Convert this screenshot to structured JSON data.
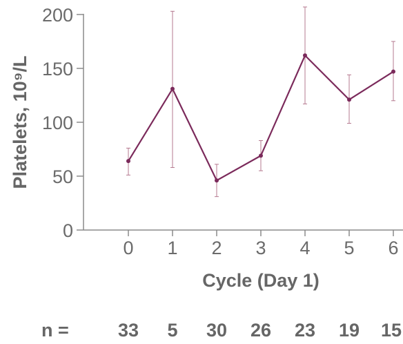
{
  "colors": {
    "series": "#7b2a5b",
    "error_bar": "#b5798f",
    "axis": "#8a8a8a",
    "text": "#666666"
  },
  "chart_data": {
    "type": "line",
    "xlabel": "Cycle (Day 1)",
    "ylabel": "Platelets, 10⁹/L",
    "xlim": [
      -0.9,
      6
    ],
    "ylim": [
      0,
      200
    ],
    "x_ticks": [
      "0",
      "1",
      "2",
      "3",
      "4",
      "5",
      "6"
    ],
    "y_ticks": [
      "0",
      "50",
      "100",
      "150",
      "200"
    ],
    "grid": false,
    "x": [
      0,
      1,
      2,
      3,
      4,
      5,
      6
    ],
    "series": [
      {
        "values": [
          64,
          131,
          46,
          69,
          162,
          121,
          147
        ],
        "error_low": [
          51,
          58,
          31,
          55,
          117,
          99,
          120
        ],
        "error_high": [
          76,
          203,
          61,
          83,
          207,
          144,
          175
        ]
      }
    ],
    "n_label": "n =",
    "n_values": [
      "33",
      "5",
      "30",
      "26",
      "23",
      "19",
      "15"
    ]
  }
}
